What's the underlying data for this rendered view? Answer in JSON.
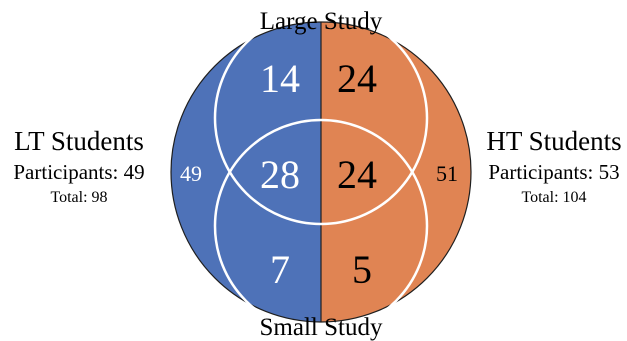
{
  "colors": {
    "lt": "#4e72b8",
    "ht": "#e08453",
    "ring": "#ffffff",
    "text_dark": "#000000",
    "text_light": "#ffffff"
  },
  "study_labels": {
    "large": "Large Study",
    "small": "Small Study"
  },
  "groups": {
    "lt": {
      "title": "LT Students",
      "participants": "Participants: 49",
      "total": "Total: 98"
    },
    "ht": {
      "title": "HT Students",
      "participants": "Participants: 53",
      "total": "Total: 104"
    }
  },
  "counts": {
    "lt_large_only": "14",
    "ht_large_only": "24",
    "lt_both": "28",
    "ht_both": "24",
    "lt_small_only": "7",
    "ht_small_only": "5",
    "lt_neither": "49",
    "ht_neither": "51"
  }
}
